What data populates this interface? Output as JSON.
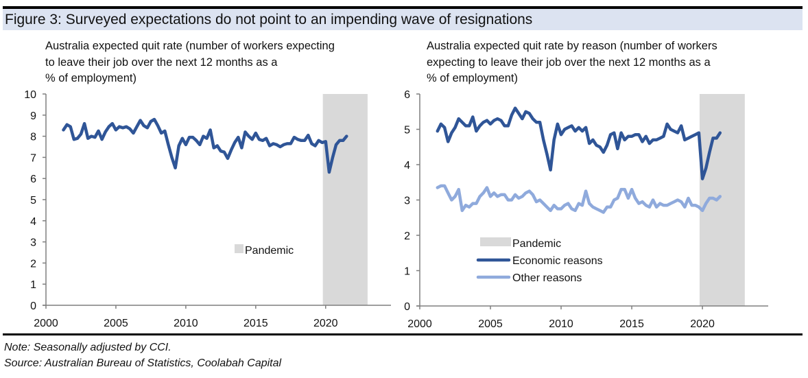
{
  "figure": {
    "title": "Figure 3: Surveyed expectations do not point to an impending wave of resignations",
    "note": "Note: Seasonally adjusted by CCI.",
    "source": "Source: Australian Bureau of Statistics, Coolabah Capital"
  },
  "colors": {
    "economic": "#2f5597",
    "other": "#8faadc",
    "pandemic": "#d9d9d9",
    "axis": "#7f7f7f",
    "title_bg": "#dce3f1"
  },
  "chart_data": [
    {
      "type": "line",
      "title": "Australia expected quit rate (number of workers expecting to leave their job over the next 12 months as a % of employment)",
      "title_lines": [
        "Australia expected quit rate (number of workers expecting",
        "to leave their job over the next 12 months as a",
        "% of employment)"
      ],
      "xlabel": "",
      "ylabel": "",
      "xlim": [
        2000,
        2023.2
      ],
      "ylim": [
        0,
        10
      ],
      "xticks": [
        2000,
        2005,
        2010,
        2015,
        2020
      ],
      "yticks": [
        0,
        1,
        2,
        3,
        4,
        5,
        6,
        7,
        8,
        9,
        10
      ],
      "grid": false,
      "legend": {
        "position": "center-right",
        "entries": [
          {
            "label": "Pandemic",
            "kind": "band"
          }
        ]
      },
      "shaded_regions": [
        {
          "label": "Pandemic",
          "x": [
            2019.8,
            2023.0
          ]
        }
      ],
      "series": [
        {
          "name": "Expected quit rate",
          "x_start": 2001.25,
          "x_step": 0.25,
          "values": [
            8.3,
            8.55,
            8.45,
            7.85,
            7.9,
            8.1,
            8.6,
            7.9,
            8.0,
            7.95,
            8.25,
            7.85,
            8.2,
            8.45,
            8.6,
            8.3,
            8.45,
            8.4,
            8.45,
            8.35,
            8.15,
            8.45,
            8.75,
            8.5,
            8.4,
            8.7,
            8.8,
            8.5,
            8.15,
            8.25,
            7.6,
            7.0,
            6.5,
            7.55,
            7.9,
            7.6,
            7.95,
            7.95,
            7.8,
            7.6,
            8.0,
            7.9,
            8.3,
            7.45,
            7.55,
            7.3,
            7.25,
            6.95,
            7.35,
            7.7,
            7.95,
            7.45,
            8.2,
            8.0,
            7.85,
            8.15,
            7.85,
            7.8,
            7.9,
            7.55,
            7.65,
            7.6,
            7.5,
            7.6,
            7.65,
            7.65,
            7.95,
            7.85,
            7.8,
            7.8,
            8.05,
            7.65,
            7.55,
            7.8,
            7.7,
            7.75,
            6.3,
            7.0,
            7.6,
            7.8,
            7.8,
            8.0
          ]
        }
      ]
    },
    {
      "type": "line",
      "title": "Australia expected quit rate  by reason (number of workers expecting to leave their job over the next 12 months as a % of employment)",
      "title_lines": [
        "Australia expected quit rate  by reason (number of workers",
        "expecting to leave their job over the next 12 months as a",
        "% of employment)"
      ],
      "xlabel": "",
      "ylabel": "",
      "xlim": [
        2000,
        2023.2
      ],
      "ylim": [
        0,
        6
      ],
      "xticks": [
        2000,
        2005,
        2010,
        2015,
        2020
      ],
      "yticks": [
        0,
        1,
        2,
        3,
        4,
        5,
        6
      ],
      "grid": false,
      "legend": {
        "position": "center",
        "entries": [
          {
            "label": "Pandemic",
            "kind": "band"
          },
          {
            "label": "Economic reasons",
            "kind": "line",
            "series": "economic"
          },
          {
            "label": "Other reasons",
            "kind": "line",
            "series": "other"
          }
        ]
      },
      "shaded_regions": [
        {
          "label": "Pandemic",
          "x": [
            2019.8,
            2023.0
          ]
        }
      ],
      "series": [
        {
          "name": "Economic reasons",
          "key": "economic",
          "x_start": 2001.25,
          "x_step": 0.25,
          "values": [
            4.95,
            5.15,
            5.05,
            4.65,
            4.9,
            5.05,
            5.3,
            5.2,
            5.1,
            5.1,
            5.35,
            4.95,
            5.1,
            5.2,
            5.25,
            5.15,
            5.25,
            5.3,
            5.25,
            5.1,
            5.1,
            5.4,
            5.6,
            5.45,
            5.3,
            5.5,
            5.45,
            5.3,
            5.2,
            5.2,
            4.7,
            4.3,
            3.85,
            4.7,
            5.15,
            4.85,
            5.0,
            5.05,
            5.1,
            4.95,
            5.05,
            4.95,
            5.05,
            4.6,
            4.7,
            4.55,
            4.5,
            4.35,
            4.55,
            4.85,
            4.9,
            4.45,
            4.9,
            4.7,
            4.8,
            4.8,
            4.85,
            4.85,
            4.65,
            4.8,
            4.6,
            4.7,
            4.7,
            4.75,
            4.8,
            5.15,
            5.0,
            4.95,
            4.9,
            5.1,
            4.7,
            4.75,
            4.8,
            4.85,
            4.9,
            3.6,
            3.9,
            4.35,
            4.75,
            4.75,
            4.9
          ]
        },
        {
          "name": "Other reasons",
          "key": "other",
          "x_start": 2001.25,
          "x_step": 0.25,
          "values": [
            3.35,
            3.4,
            3.4,
            3.2,
            3.0,
            3.1,
            3.3,
            2.7,
            2.85,
            2.8,
            2.9,
            2.9,
            3.1,
            3.2,
            3.35,
            3.1,
            3.2,
            3.1,
            3.15,
            3.15,
            3.0,
            3.0,
            3.15,
            3.05,
            3.1,
            3.2,
            3.25,
            3.15,
            2.95,
            3.0,
            2.9,
            2.8,
            2.7,
            2.85,
            2.75,
            2.75,
            2.85,
            2.9,
            2.75,
            2.7,
            2.9,
            2.85,
            3.25,
            2.9,
            2.8,
            2.75,
            2.7,
            2.65,
            2.8,
            2.8,
            3.0,
            3.05,
            3.3,
            3.3,
            3.05,
            3.3,
            3.05,
            2.9,
            2.95,
            2.85,
            2.8,
            3.0,
            2.8,
            2.9,
            2.85,
            2.85,
            2.9,
            2.95,
            3.0,
            2.95,
            2.8,
            3.05,
            2.85,
            2.85,
            2.8,
            2.7,
            2.9,
            3.05,
            3.05,
            3.0,
            3.1
          ]
        }
      ]
    }
  ]
}
